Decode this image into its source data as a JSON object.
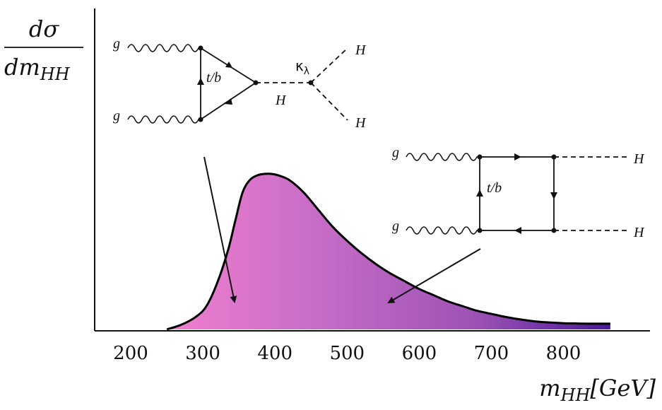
{
  "chart_data": {
    "type": "area",
    "title": "",
    "ylabel_numerator": "dσ",
    "ylabel_denominator": "dm",
    "ylabel_subscript": "HH",
    "xlabel_main": "m",
    "xlabel_subscript": "HH",
    "xlabel_unit": "[GeV]",
    "x_ticks": [
      "200",
      "300",
      "400",
      "500",
      "600",
      "700",
      "800"
    ],
    "xlim": [
      150,
      920
    ],
    "ylim": [
      0,
      1.07
    ],
    "series": [
      {
        "x": [
          250,
          270,
          290,
          305,
          320,
          335,
          345,
          355,
          365,
          375,
          385,
          395,
          405,
          420,
          440,
          460,
          480,
          500,
          520,
          540,
          560,
          580,
          600,
          620,
          640,
          660,
          680,
          700,
          720,
          740,
          760,
          780,
          800,
          820,
          840,
          865
        ],
        "values": [
          0.0,
          0.03,
          0.08,
          0.15,
          0.3,
          0.51,
          0.7,
          0.88,
          0.96,
          0.99,
          1.0,
          1.0,
          0.99,
          0.96,
          0.88,
          0.77,
          0.66,
          0.57,
          0.49,
          0.42,
          0.36,
          0.31,
          0.26,
          0.22,
          0.18,
          0.15,
          0.12,
          0.1,
          0.08,
          0.064,
          0.052,
          0.045,
          0.04,
          0.038,
          0.037,
          0.037
        ]
      }
    ],
    "fill_gradient": [
      "#f07fd0",
      "#c56cc6",
      "#9c52b5",
      "#4a1a95"
    ],
    "grid": false
  },
  "diagrams": {
    "triangle": {
      "gluon_top": "g",
      "gluon_bottom": "g",
      "loop_label": "t/b",
      "propagator_label": "H",
      "coupling_label": "κ",
      "coupling_sub": "λ",
      "out_top": "H",
      "out_bottom": "H"
    },
    "box": {
      "gluon_top": "g",
      "gluon_bottom": "g",
      "loop_label": "t/b",
      "out_top": "H",
      "out_bottom": "H"
    }
  }
}
